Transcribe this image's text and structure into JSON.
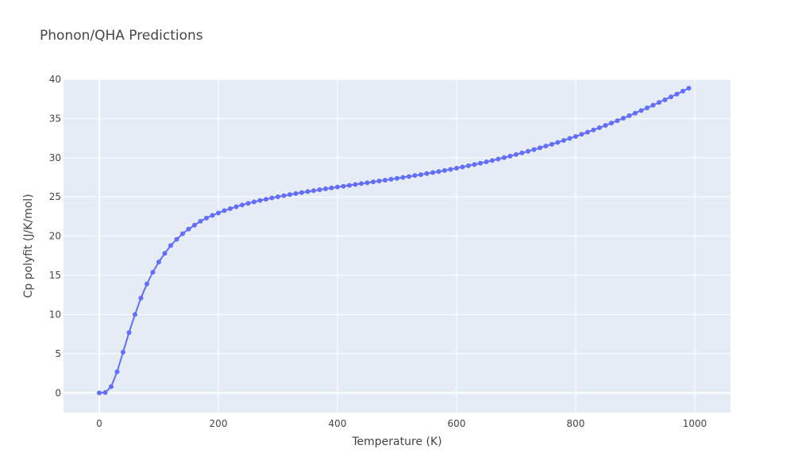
{
  "chart_data": {
    "type": "line",
    "title": "Phonon/QHA Predictions",
    "xlabel": "Temperature (K)",
    "ylabel": "Cp polyfit (J/K/mol)",
    "xlim": [
      -60,
      1060
    ],
    "ylim": [
      -2.5,
      40
    ],
    "x_ticks": [
      0,
      200,
      400,
      600,
      800,
      1000
    ],
    "y_ticks": [
      0,
      5,
      10,
      15,
      20,
      25,
      30,
      35,
      40
    ],
    "grid": true,
    "colors": {
      "plot_bg": "#e5ecf6",
      "grid": "#ffffff",
      "series": "#636efa",
      "text": "#444444"
    },
    "series": [
      {
        "mode": "lines+markers",
        "x": [
          0,
          10,
          20,
          30,
          40,
          50,
          60,
          70,
          80,
          90,
          100,
          110,
          120,
          130,
          140,
          150,
          160,
          170,
          180,
          190,
          200,
          210,
          220,
          230,
          240,
          250,
          260,
          270,
          280,
          290,
          300,
          310,
          320,
          330,
          340,
          350,
          360,
          370,
          380,
          390,
          400,
          410,
          420,
          430,
          440,
          450,
          460,
          470,
          480,
          490,
          500,
          510,
          520,
          530,
          540,
          550,
          560,
          570,
          580,
          590,
          600,
          610,
          620,
          630,
          640,
          650,
          660,
          670,
          680,
          690,
          700,
          710,
          720,
          730,
          740,
          750,
          760,
          770,
          780,
          790,
          800,
          810,
          820,
          830,
          840,
          850,
          860,
          870,
          880,
          890,
          900,
          910,
          920,
          930,
          940,
          950,
          960,
          970,
          980,
          990
        ],
        "y": [
          0.0,
          0.05,
          0.8,
          2.7,
          5.2,
          7.7,
          10.0,
          12.1,
          13.9,
          15.4,
          16.7,
          17.8,
          18.8,
          19.6,
          20.3,
          20.9,
          21.4,
          21.9,
          22.3,
          22.65,
          22.95,
          23.25,
          23.5,
          23.75,
          23.98,
          24.18,
          24.37,
          24.55,
          24.71,
          24.87,
          25.02,
          25.16,
          25.3,
          25.43,
          25.56,
          25.68,
          25.8,
          25.92,
          26.04,
          26.15,
          26.26,
          26.37,
          26.48,
          26.59,
          26.7,
          26.81,
          26.92,
          27.03,
          27.14,
          27.25,
          27.37,
          27.49,
          27.61,
          27.73,
          27.85,
          27.98,
          28.11,
          28.24,
          28.38,
          28.52,
          28.67,
          28.82,
          28.98,
          29.14,
          29.3,
          29.47,
          29.65,
          29.83,
          30.02,
          30.21,
          30.41,
          30.61,
          30.82,
          31.04,
          31.26,
          31.49,
          31.72,
          31.96,
          32.21,
          32.46,
          32.72,
          32.99,
          33.26,
          33.54,
          33.83,
          34.12,
          34.42,
          34.73,
          35.04,
          35.36,
          35.69,
          36.02,
          36.36,
          36.7,
          37.05,
          37.4,
          37.76,
          38.12,
          38.49,
          38.86
        ]
      }
    ]
  }
}
